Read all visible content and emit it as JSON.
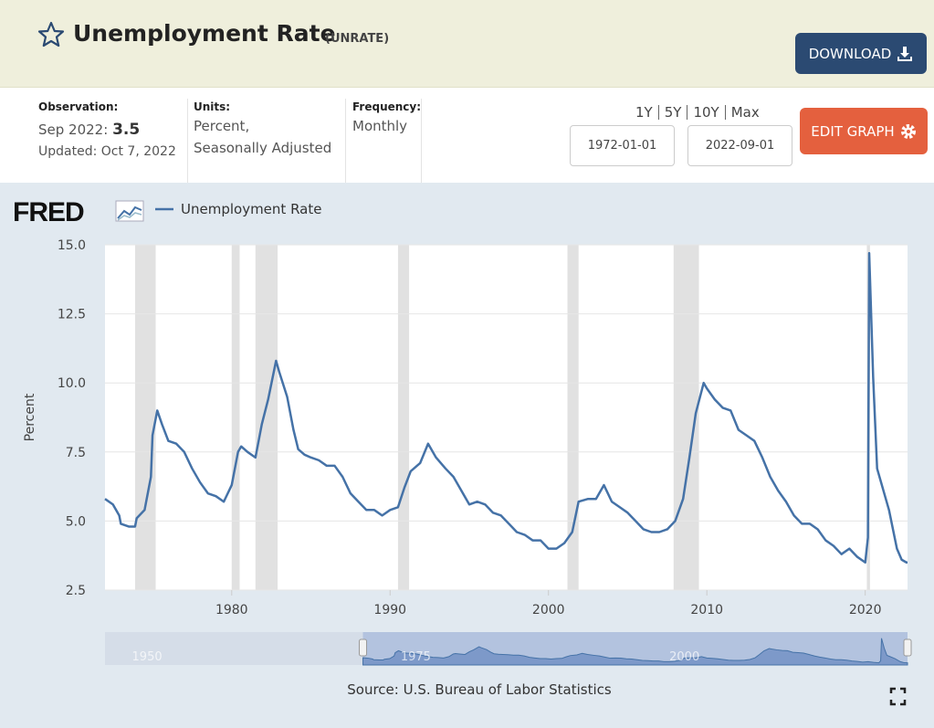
{
  "header": {
    "title": "Unemployment Rate",
    "code": "(UNRATE)",
    "download": "DOWNLOAD"
  },
  "info": {
    "observation_label": "Observation:",
    "observation_date": "Sep 2022:",
    "observation_value": "3.5",
    "updated": "Updated: Oct 7, 2022",
    "units_label": "Units:",
    "units_lines": [
      "Percent,",
      "Seasonally Adjusted"
    ],
    "frequency_label": "Frequency:",
    "frequency": "Monthly",
    "range_links": [
      "1Y",
      "5Y",
      "10Y",
      "Max"
    ],
    "start_date": "1972-01-01",
    "end_date": "2022-09-01",
    "edit_graph": "EDIT GRAPH"
  },
  "logo": "FRED",
  "source": "Source: U.S. Bureau of Labor Statistics",
  "chart_data": {
    "type": "line",
    "ylabel": "Percent",
    "xlim": [
      1972,
      2022.67
    ],
    "xticks": [
      1980,
      1990,
      2000,
      2010,
      2020
    ],
    "ylim": [
      2.5,
      15
    ],
    "yticks": [
      2.5,
      {
        "value": 5,
        "label": "5.0"
      },
      7.5,
      {
        "value": 10,
        "label": "10.0"
      },
      12.5,
      {
        "value": 15,
        "label": "15.0"
      }
    ],
    "grid": true,
    "recessions": [
      [
        1973.9,
        1975.2
      ],
      [
        1980.0,
        1980.5
      ],
      [
        1981.5,
        1982.9
      ],
      [
        1990.5,
        1991.2
      ],
      [
        2001.2,
        2001.9
      ],
      [
        2007.9,
        2009.5
      ],
      [
        2020.1,
        2020.3
      ]
    ],
    "x": [
      1972.0,
      1972.5,
      1972.9,
      1973.0,
      1973.5,
      1973.9,
      1974.0,
      1974.5,
      1974.9,
      1975.0,
      1975.3,
      1975.6,
      1976.0,
      1976.5,
      1977.0,
      1977.5,
      1978.0,
      1978.5,
      1979.0,
      1979.5,
      1980.0,
      1980.4,
      1980.6,
      1981.0,
      1981.5,
      1981.9,
      1982.3,
      1982.8,
      1983.0,
      1983.5,
      1983.9,
      1984.2,
      1984.6,
      1985.0,
      1985.5,
      1986.0,
      1986.5,
      1987.0,
      1987.5,
      1988.0,
      1988.5,
      1989.0,
      1989.5,
      1990.0,
      1990.5,
      1990.9,
      1991.3,
      1991.9,
      1992.4,
      1992.9,
      1993.5,
      1994.0,
      1994.5,
      1995.0,
      1995.5,
      1996.0,
      1996.5,
      1997.0,
      1997.5,
      1998.0,
      1998.5,
      1999.0,
      1999.5,
      2000.0,
      2000.5,
      2001.0,
      2001.5,
      2001.9,
      2002.5,
      2003.0,
      2003.5,
      2004.0,
      2004.5,
      2005.0,
      2005.5,
      2006.0,
      2006.5,
      2007.0,
      2007.5,
      2008.0,
      2008.5,
      2008.9,
      2009.3,
      2009.8,
      2010.0,
      2010.5,
      2011.0,
      2011.5,
      2012.0,
      2012.5,
      2013.0,
      2013.5,
      2014.0,
      2014.5,
      2015.0,
      2015.5,
      2016.0,
      2016.5,
      2017.0,
      2017.5,
      2018.0,
      2018.5,
      2019.0,
      2019.5,
      2020.0,
      2020.17,
      2020.25,
      2020.5,
      2020.75,
      2021.0,
      2021.5,
      2022.0,
      2022.3,
      2022.6,
      2022.67
    ],
    "series": [
      {
        "name": "Unemployment Rate",
        "color": "#4572a7",
        "values": [
          5.8,
          5.6,
          5.2,
          4.9,
          4.8,
          4.8,
          5.1,
          5.4,
          6.6,
          8.1,
          9.0,
          8.5,
          7.9,
          7.8,
          7.5,
          6.9,
          6.4,
          6.0,
          5.9,
          5.7,
          6.3,
          7.5,
          7.7,
          7.5,
          7.3,
          8.5,
          9.4,
          10.8,
          10.4,
          9.5,
          8.3,
          7.6,
          7.4,
          7.3,
          7.2,
          7.0,
          7.0,
          6.6,
          6.0,
          5.7,
          5.4,
          5.4,
          5.2,
          5.4,
          5.5,
          6.2,
          6.8,
          7.1,
          7.8,
          7.3,
          6.9,
          6.6,
          6.1,
          5.6,
          5.7,
          5.6,
          5.3,
          5.2,
          4.9,
          4.6,
          4.5,
          4.3,
          4.3,
          4.0,
          4.0,
          4.2,
          4.6,
          5.7,
          5.8,
          5.8,
          6.3,
          5.7,
          5.5,
          5.3,
          5.0,
          4.7,
          4.6,
          4.6,
          4.7,
          5.0,
          5.8,
          7.3,
          8.9,
          10.0,
          9.8,
          9.4,
          9.1,
          9.0,
          8.3,
          8.1,
          7.9,
          7.3,
          6.6,
          6.1,
          5.7,
          5.2,
          4.9,
          4.9,
          4.7,
          4.3,
          4.1,
          3.8,
          4.0,
          3.7,
          3.5,
          4.4,
          14.7,
          10.2,
          6.9,
          6.4,
          5.4,
          4.0,
          3.6,
          3.5,
          3.5
        ]
      }
    ],
    "navigator": {
      "xlim": [
        1948,
        2022.67
      ],
      "xticks": [
        1950,
        1975,
        2000
      ]
    }
  }
}
